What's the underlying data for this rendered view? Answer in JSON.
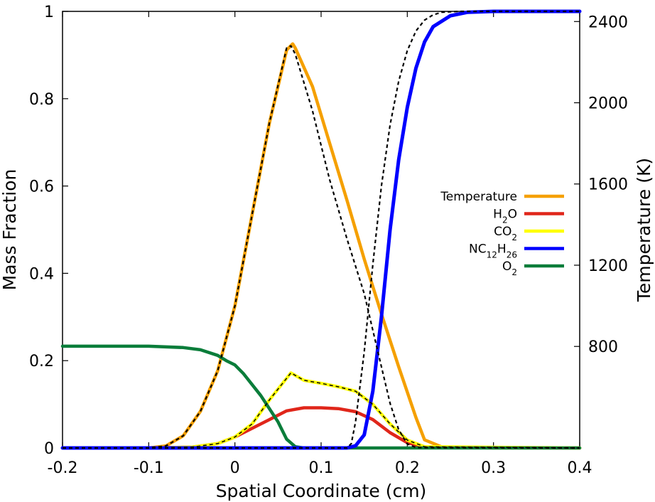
{
  "chart_data": {
    "type": "line",
    "xlabel": "Spatial Coordinate (cm)",
    "ylabel": "Mass Fraction",
    "y2label": "Temperature (K)",
    "xlim": [
      -0.2,
      0.4
    ],
    "ylim": [
      0,
      1
    ],
    "y2lim": [
      300,
      2450
    ],
    "xticks": [
      "-0.2",
      "-0.1",
      "0",
      "0.1",
      "0.2",
      "0.3",
      "0.4"
    ],
    "yticks": [
      "0",
      "0.2",
      "0.4",
      "0.6",
      "0.8",
      "1"
    ],
    "y2ticks": [
      "800",
      "1200",
      "1600",
      "2000",
      "2400"
    ],
    "legend_position": "right-middle",
    "series": [
      {
        "name": "Temperature",
        "legend_parts": [
          [
            "Temperature",
            ""
          ]
        ],
        "axis": "right",
        "color": "#f5a000",
        "x": [
          -0.2,
          -0.1,
          -0.08,
          -0.06,
          -0.04,
          -0.02,
          0.0,
          0.02,
          0.04,
          0.06,
          0.067,
          0.07,
          0.09,
          0.11,
          0.13,
          0.15,
          0.17,
          0.19,
          0.21,
          0.22,
          0.24,
          0.3,
          0.4
        ],
        "y": [
          300,
          300,
          310,
          360,
          480,
          680,
          1000,
          1450,
          1900,
          2260,
          2290,
          2270,
          2080,
          1800,
          1520,
          1230,
          960,
          700,
          450,
          340,
          305,
          300,
          300
        ]
      },
      {
        "name": "H2O",
        "legend_parts": [
          [
            "H",
            ""
          ],
          [
            "2",
            "sub"
          ],
          [
            "O",
            ""
          ]
        ],
        "axis": "left",
        "color": "#e0261a",
        "x": [
          -0.2,
          -0.1,
          -0.05,
          -0.02,
          0.0,
          0.02,
          0.04,
          0.06,
          0.08,
          0.1,
          0.12,
          0.14,
          0.16,
          0.18,
          0.2,
          0.22,
          0.4
        ],
        "y": [
          0,
          0,
          0.002,
          0.01,
          0.025,
          0.045,
          0.065,
          0.085,
          0.092,
          0.092,
          0.09,
          0.083,
          0.065,
          0.035,
          0.012,
          0.002,
          0
        ]
      },
      {
        "name": "CO2",
        "legend_parts": [
          [
            "CO",
            ""
          ],
          [
            "2",
            "sub"
          ]
        ],
        "axis": "left",
        "color": "#ffff00",
        "x": [
          -0.2,
          -0.1,
          -0.05,
          -0.02,
          0.0,
          0.02,
          0.04,
          0.065,
          0.08,
          0.1,
          0.12,
          0.14,
          0.16,
          0.18,
          0.2,
          0.22,
          0.4
        ],
        "y": [
          0,
          0,
          0.002,
          0.01,
          0.025,
          0.055,
          0.11,
          0.172,
          0.155,
          0.148,
          0.14,
          0.13,
          0.1,
          0.055,
          0.018,
          0.003,
          0
        ]
      },
      {
        "name": "NC12H26",
        "legend_parts": [
          [
            "NC",
            ""
          ],
          [
            "12",
            "sub"
          ],
          [
            "H",
            ""
          ],
          [
            "26",
            "sub"
          ]
        ],
        "axis": "left",
        "color": "#0000ff",
        "x": [
          -0.2,
          0.13,
          0.14,
          0.15,
          0.16,
          0.17,
          0.18,
          0.19,
          0.2,
          0.21,
          0.22,
          0.23,
          0.25,
          0.27,
          0.3,
          0.4
        ],
        "y": [
          0,
          0,
          0.005,
          0.03,
          0.13,
          0.3,
          0.5,
          0.66,
          0.78,
          0.87,
          0.93,
          0.965,
          0.99,
          0.998,
          1.0,
          1.0
        ],
        "stroke_width": 5
      },
      {
        "name": "O2",
        "legend_parts": [
          [
            "O",
            ""
          ],
          [
            "2",
            "sub"
          ]
        ],
        "axis": "left",
        "color": "#0a7d3a",
        "x": [
          -0.2,
          -0.1,
          -0.06,
          -0.04,
          -0.02,
          -0.01,
          0.0,
          0.01,
          0.03,
          0.05,
          0.06,
          0.07,
          0.08,
          0.1,
          0.4
        ],
        "y": [
          0.233,
          0.233,
          0.23,
          0.225,
          0.212,
          0.2,
          0.19,
          0.17,
          0.12,
          0.06,
          0.02,
          0.003,
          0,
          0,
          0
        ]
      },
      {
        "name": "",
        "legend_parts": [],
        "axis": "right",
        "color": "#000000",
        "dashed": true,
        "x": [
          -0.2,
          -0.1,
          -0.08,
          -0.06,
          -0.04,
          -0.02,
          0.0,
          0.02,
          0.04,
          0.06,
          0.065,
          0.07,
          0.09,
          0.11,
          0.13,
          0.15,
          0.16,
          0.17,
          0.18,
          0.19,
          0.2,
          0.21,
          0.4
        ],
        "y": [
          300,
          300,
          310,
          360,
          480,
          680,
          1000,
          1450,
          1900,
          2270,
          2280,
          2240,
          1960,
          1620,
          1330,
          1060,
          880,
          700,
          520,
          390,
          320,
          302,
          300
        ]
      },
      {
        "name": "",
        "legend_parts": [],
        "axis": "left",
        "color": "#000000",
        "dashed": true,
        "x": [
          -0.2,
          0.13,
          0.135,
          0.14,
          0.15,
          0.16,
          0.17,
          0.18,
          0.19,
          0.2,
          0.21,
          0.22,
          0.23,
          0.24,
          0.26,
          0.4
        ],
        "y": [
          0,
          0,
          0.01,
          0.06,
          0.22,
          0.42,
          0.6,
          0.74,
          0.84,
          0.91,
          0.955,
          0.98,
          0.992,
          0.998,
          1.0,
          1.0
        ]
      },
      {
        "name": "",
        "legend_parts": [],
        "axis": "left",
        "color": "#000000",
        "dashed": true,
        "stroke_width": 1.5,
        "x": [
          -0.2,
          -0.1,
          -0.05,
          -0.02,
          0.0,
          0.02,
          0.04,
          0.065,
          0.08,
          0.1,
          0.12,
          0.14,
          0.16,
          0.18,
          0.2,
          0.22,
          0.4
        ],
        "y": [
          0,
          0,
          0.002,
          0.01,
          0.025,
          0.055,
          0.11,
          0.172,
          0.155,
          0.148,
          0.14,
          0.13,
          0.1,
          0.055,
          0.018,
          0.003,
          0
        ]
      }
    ]
  }
}
